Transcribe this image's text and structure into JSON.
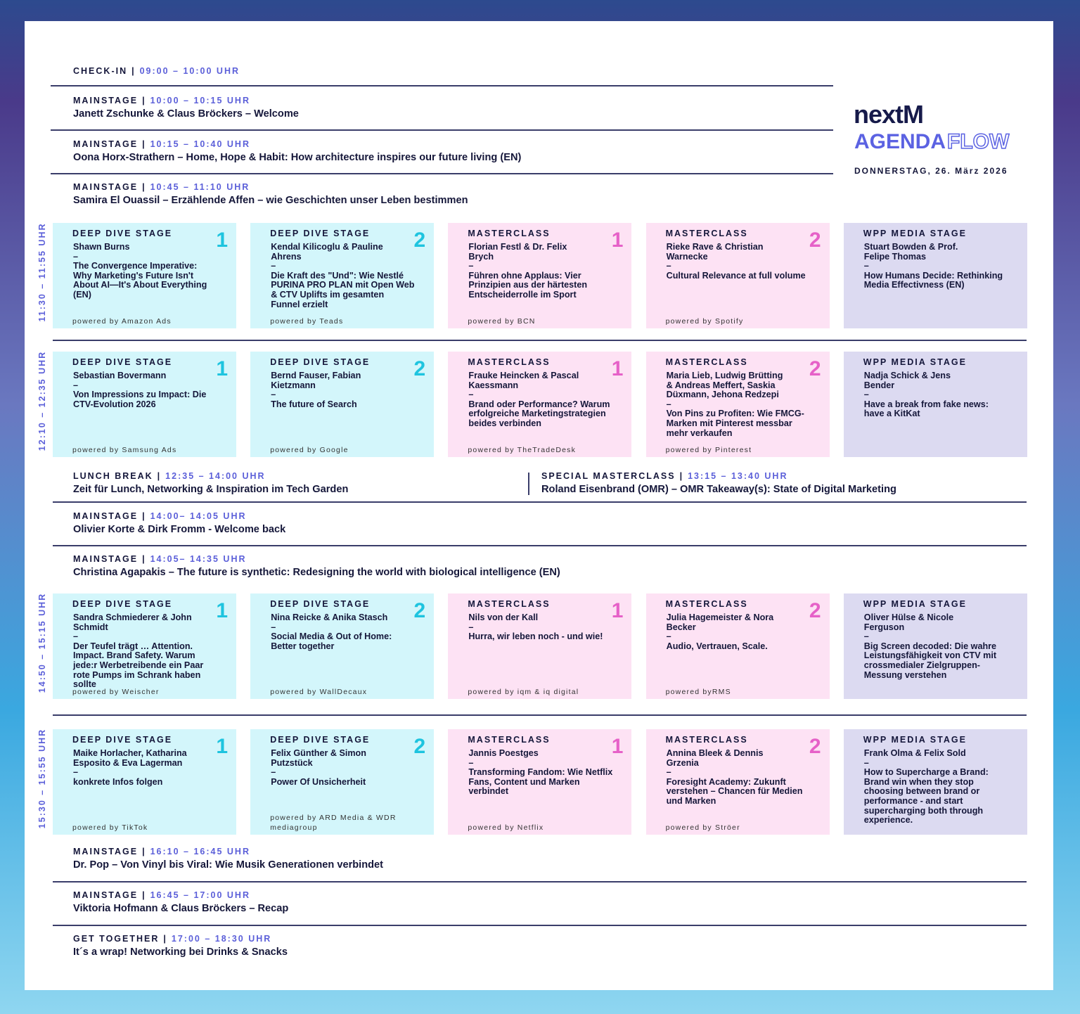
{
  "header": {
    "brand": "nextM",
    "title": "AGENDA",
    "title_outline": "FLOW",
    "date": "DONNERSTAG, 26. März 2026"
  },
  "divider": "|",
  "separator": "–",
  "sessions": [
    {
      "stage": "CHECK-IN",
      "time": "09:00 – 10:00 UHR"
    },
    {
      "stage": "MAINSTAGE",
      "time": "10:00 – 10:15 UHR",
      "text": "Janett Zschunke & Claus Bröckers – Welcome"
    },
    {
      "stage": "MAINSTAGE",
      "time": "10:15 – 10:40 UHR",
      "text": "Oona Horx-Strathern – Home, Hope & Habit: How architecture inspires our future living (EN)"
    },
    {
      "stage": "MAINSTAGE",
      "time": "10:45 – 11:10 UHR",
      "text": "Samira El Ouassil – Erzählende Affen – wie Geschichten unser Leben bestimmen"
    },
    {
      "stage": "LUNCH BREAK",
      "time": "12:35 – 14:00 UHR",
      "text": "Zeit für Lunch, Networking & Inspiration im Tech Garden"
    },
    {
      "stage": "SPECIAL MASTERCLASS",
      "time": "13:15 – 13:40 UHR",
      "text": "Roland Eisenbrand (OMR) – OMR Takeaway(s): State of Digital Marketing"
    },
    {
      "stage": "MAINSTAGE",
      "time": "14:00– 14:05 UHR",
      "text": "Olivier Korte & Dirk Fromm - Welcome back"
    },
    {
      "stage": "MAINSTAGE",
      "time": "14:05– 14:35 UHR",
      "text": "Christina Agapakis – The future is synthetic: Redesigning the world with biological intelligence (EN)"
    },
    {
      "stage": "MAINSTAGE",
      "time": "16:10 – 16:45 UHR",
      "text": "Dr. Pop – Von Vinyl bis Viral: Wie Musik Generationen verbindet"
    },
    {
      "stage": "MAINSTAGE",
      "time": "16:45 – 17:00 UHR",
      "text": "Viktoria Hofmann & Claus Bröckers – Recap"
    },
    {
      "stage": "GET TOGETHER",
      "time": "17:00 – 18:30 UHR",
      "text": "It´s a wrap! Networking bei Drinks & Snacks"
    }
  ],
  "blocks": [
    {
      "time": "11:30 – 11:55 UHR",
      "cards": [
        {
          "stage": "DEEP DIVE STAGE",
          "number": 1,
          "speaker": "Shawn Burns",
          "text": "The Convergence Imperative: Why Marketing's Future Isn't About AI—It's About Everything (EN)",
          "powered": "powered by Amazon Ads"
        },
        {
          "stage": "DEEP DIVE STAGE",
          "number": 2,
          "speaker": "Kendal Kilicoglu & Pauline Ahrens",
          "text": "Die Kraft des \"Und\": Wie Nestlé PURINA PRO PLAN mit Open Web & CTV Uplifts im gesamten Funnel erzielt",
          "powered": "powered by Teads"
        },
        {
          "stage": "MASTERCLASS",
          "number": 1,
          "speaker": "Florian Festl & Dr. Felix Brych",
          "text": "Führen ohne Applaus: Vier Prinzipien aus der härtesten Entscheiderrolle im Sport",
          "powered": "powered by BCN"
        },
        {
          "stage": "MASTERCLASS",
          "number": 2,
          "speaker": "Rieke Rave & Christian Warnecke",
          "text": "Cultural Relevance at full volume",
          "powered": "powered by Spotify"
        },
        {
          "stage": "WPP MEDIA STAGE",
          "speaker": "Stuart Bowden & Prof. Felipe Thomas",
          "text": "How Humans Decide: Rethinking Media Effectivness (EN)"
        }
      ]
    },
    {
      "time": "12:10 – 12:35 UHR",
      "cards": [
        {
          "stage": "DEEP DIVE STAGE",
          "number": 1,
          "speaker": "Sebastian Bovermann",
          "text": "Von Impressions zu Impact: Die CTV-Evolution 2026",
          "powered": "powered by Samsung Ads"
        },
        {
          "stage": "DEEP DIVE STAGE",
          "number": 2,
          "speaker": "Bernd Fauser, Fabian Kietzmann",
          "text": "The future of Search",
          "powered": "powered by Google"
        },
        {
          "stage": "MASTERCLASS",
          "number": 1,
          "speaker": "Frauke Heincken & Pascal Kaessmann",
          "text": "Brand oder Performance? Warum erfolgreiche Marketingstrategien beides verbinden",
          "powered": "powered by TheTradeDesk"
        },
        {
          "stage": "MASTERCLASS",
          "number": 2,
          "speaker": "Maria Lieb, Ludwig Brütting & Andreas Meffert, Saskia Düxmann, Jehona Redzepi",
          "text": "Von Pins zu Profiten: Wie FMCG-Marken mit Pinterest messbar mehr verkaufen",
          "powered": "powered by Pinterest"
        },
        {
          "stage": "WPP MEDIA STAGE",
          "speaker": "Nadja Schick & Jens Bender",
          "text": "Have a break from fake news: have a KitKat"
        }
      ]
    },
    {
      "time": "14:50 – 15:15 UHR",
      "cards": [
        {
          "stage": "DEEP DIVE STAGE",
          "number": 1,
          "speaker": "Sandra Schmiederer & John Schmidt",
          "text": "Der Teufel trägt … Attention. Impact. Brand Safety. Warum jede:r Werbetreibende ein Paar rote Pumps im Schrank haben sollte",
          "powered": "powered by Weischer"
        },
        {
          "stage": "DEEP DIVE STAGE",
          "number": 2,
          "speaker": "Nina Reicke & Anika Stasch",
          "text": "Social Media & Out of Home: Better together",
          "powered": "powered by WallDecaux"
        },
        {
          "stage": "MASTERCLASS",
          "number": 1,
          "speaker": "Nils von der Kall",
          "text": "Hurra, wir leben noch - und wie!",
          "powered": "powered by iqm & iq digital"
        },
        {
          "stage": "MASTERCLASS",
          "number": 2,
          "speaker": "Julia Hagemeister & Nora Becker",
          "text": "Audio, Vertrauen, Scale.",
          "powered": "powered byRMS"
        },
        {
          "stage": "WPP MEDIA STAGE",
          "speaker": "Oliver Hülse & Nicole Ferguson",
          "text": "Big Screen decoded: Die wahre Leistungsfähigkeit von CTV mit crossmedialer Zielgruppen-Messung verstehen"
        }
      ]
    },
    {
      "time": "15:30 – 15:55 UHR",
      "cards": [
        {
          "stage": "DEEP DIVE STAGE",
          "number": 1,
          "speaker": "Maike Horlacher, Katharina Esposito & Eva Lagerman",
          "text": "konkrete Infos folgen",
          "powered": "powered by TikTok"
        },
        {
          "stage": "DEEP DIVE STAGE",
          "number": 2,
          "speaker": "Felix Günther & Simon Putzstück",
          "text": "Power Of Unsicherheit",
          "powered": "powered by ARD Media & WDR mediagroup"
        },
        {
          "stage": "MASTERCLASS",
          "number": 1,
          "speaker": "Jannis Poestges",
          "text": "Transforming Fandom: Wie Netflix Fans, Content und Marken verbindet",
          "powered": "powered by Netflix"
        },
        {
          "stage": "MASTERCLASS",
          "number": 2,
          "speaker": "Annina Bleek & Dennis Grzenia",
          "text": "Foresight Academy: Zukunft verstehen – Chancen für Medien und Marken",
          "powered": "powered by Ströer"
        },
        {
          "stage": "WPP MEDIA STAGE",
          "speaker": "Frank Olma & Felix Sold",
          "text": "How to Supercharge a Brand: Brand win when they stop choosing between brand or performance - and start supercharging both through experience."
        }
      ]
    }
  ]
}
